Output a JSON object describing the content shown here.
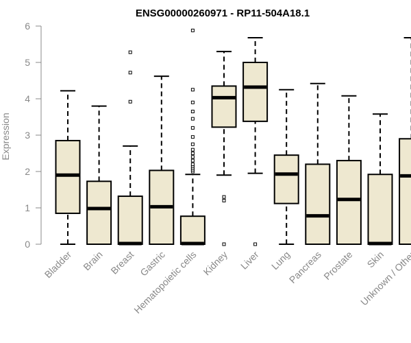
{
  "chart_data": {
    "type": "box",
    "title": "ENSG00000260971 - RP11-504A18.1",
    "ylabel": "Expression",
    "xlabel": "",
    "ylim": [
      0,
      6
    ],
    "yticks": [
      0,
      1,
      2,
      3,
      4,
      5,
      6
    ],
    "box_fill": "#EEE8D0",
    "stroke": "#000000",
    "axis_color": "#888888",
    "categories": [
      "Bladder",
      "Brain",
      "Breast",
      "Gastric",
      "Hematopoietic cells",
      "Kidney",
      "Liver",
      "Lung",
      "Pancreas",
      "Prostate",
      "Skin",
      "Unknown / Other"
    ],
    "boxes": [
      {
        "name": "Bladder",
        "min": 0,
        "q1": 0.85,
        "median": 1.9,
        "q3": 2.85,
        "max": 4.22,
        "outliers": []
      },
      {
        "name": "Brain",
        "min": 0,
        "q1": 0,
        "median": 0.98,
        "q3": 1.73,
        "max": 3.8,
        "outliers": []
      },
      {
        "name": "Breast",
        "min": 0,
        "q1": 0,
        "median": 0.02,
        "q3": 1.32,
        "max": 2.7,
        "outliers": [
          3.92,
          4.72,
          5.28
        ]
      },
      {
        "name": "Gastric",
        "min": 0,
        "q1": 0,
        "median": 1.03,
        "q3": 2.03,
        "max": 4.62,
        "outliers": []
      },
      {
        "name": "Hematopoietic cells",
        "min": 0,
        "q1": 0,
        "median": 0.02,
        "q3": 0.77,
        "max": 1.92,
        "outliers": [
          2.0,
          2.05,
          2.1,
          2.15,
          2.2,
          2.3,
          2.4,
          2.5,
          2.6,
          2.75,
          2.95,
          3.2,
          3.45,
          3.65,
          3.9,
          4.25,
          5.88
        ]
      },
      {
        "name": "Kidney",
        "min": 1.9,
        "q1": 3.22,
        "median": 4.03,
        "q3": 4.35,
        "max": 5.3,
        "outliers": [
          0,
          1.2,
          1.3
        ]
      },
      {
        "name": "Liver",
        "min": 1.95,
        "q1": 3.38,
        "median": 4.32,
        "q3": 5.0,
        "max": 5.68,
        "outliers": [
          0
        ]
      },
      {
        "name": "Lung",
        "min": 0,
        "q1": 1.12,
        "median": 1.93,
        "q3": 2.45,
        "max": 4.25,
        "outliers": []
      },
      {
        "name": "Pancreas",
        "min": 0,
        "q1": 0,
        "median": 0.78,
        "q3": 2.2,
        "max": 4.42,
        "outliers": []
      },
      {
        "name": "Prostate",
        "min": 0,
        "q1": 0,
        "median": 1.23,
        "q3": 2.3,
        "max": 4.08,
        "outliers": []
      },
      {
        "name": "Skin",
        "min": 0,
        "q1": 0,
        "median": 0.02,
        "q3": 1.92,
        "max": 3.58,
        "outliers": []
      },
      {
        "name": "Unknown / Other",
        "min": 0,
        "q1": 0,
        "median": 1.88,
        "q3": 2.9,
        "max": 5.68,
        "outliers": []
      }
    ]
  }
}
